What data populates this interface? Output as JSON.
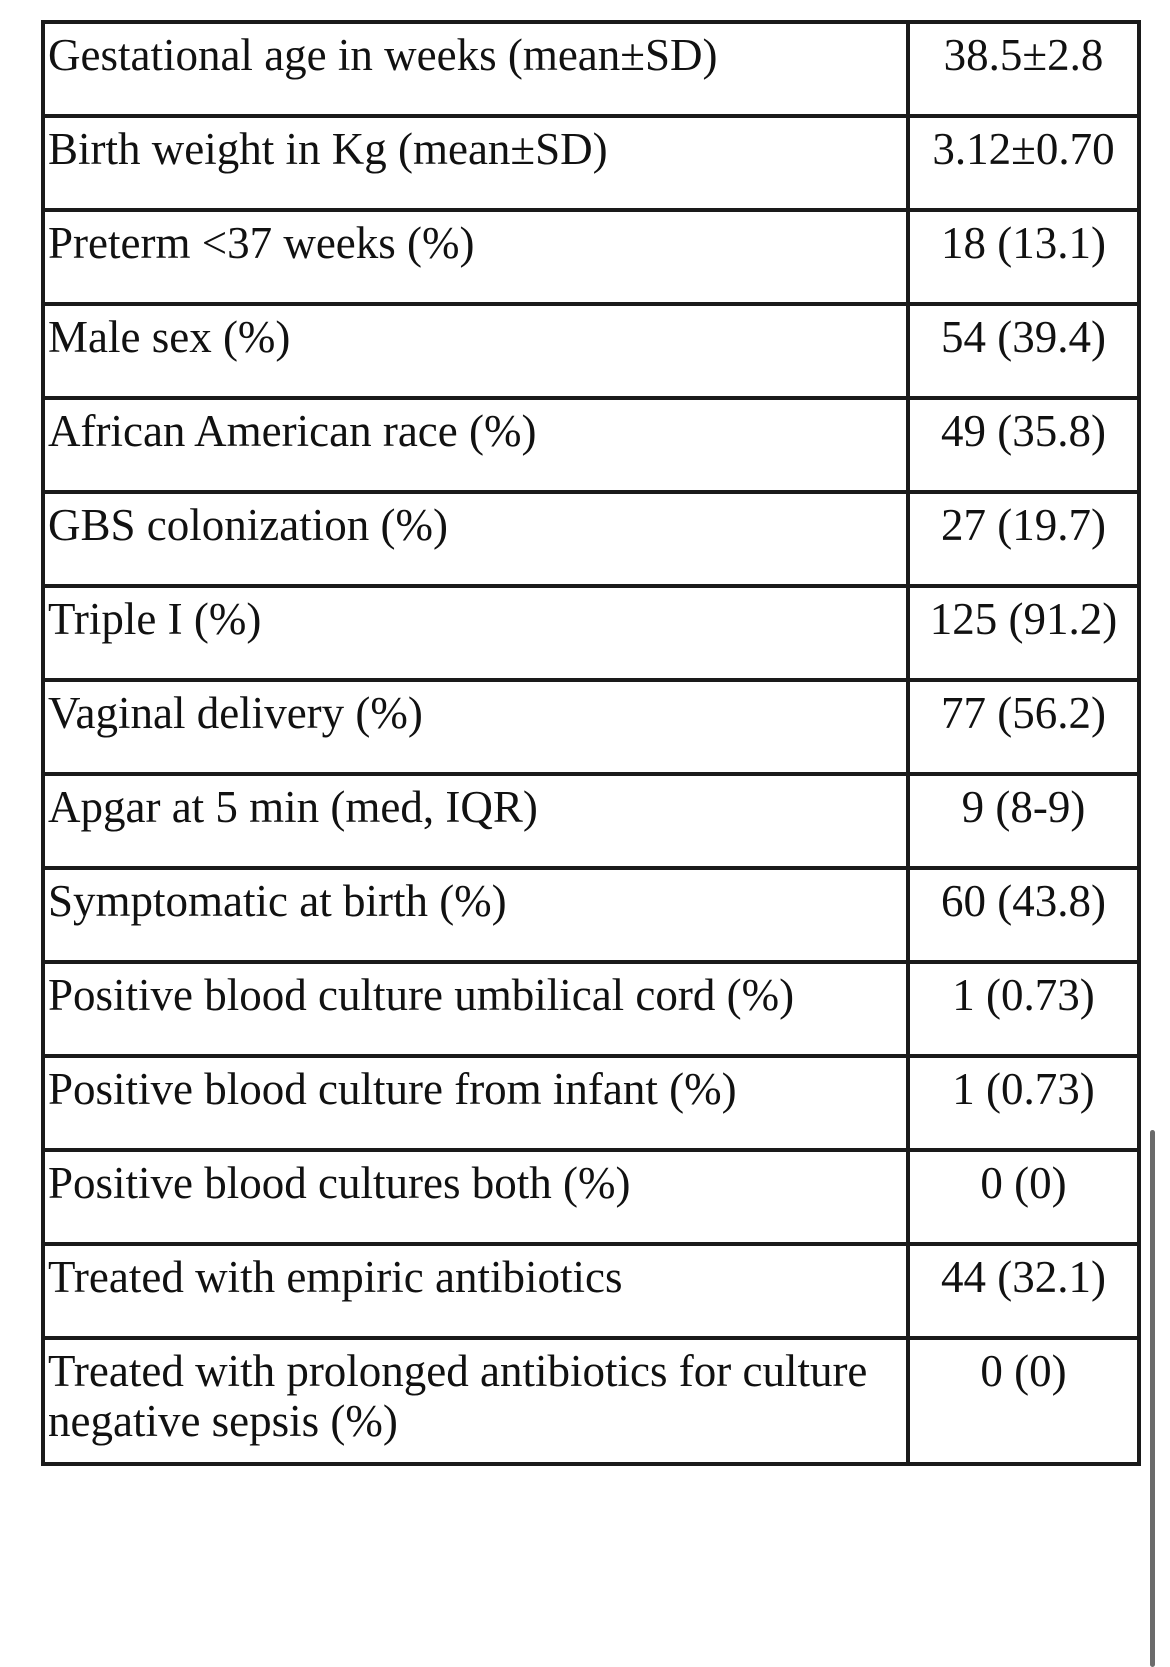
{
  "table": {
    "rows": [
      {
        "label": "Gestational age in weeks (mean±SD)",
        "value": "38.5±2.8"
      },
      {
        "label": "Birth weight in Kg (mean±SD)",
        "value": "3.12±0.70"
      },
      {
        "label": "Preterm <37 weeks (%)",
        "value": "18 (13.1)"
      },
      {
        "label": "Male sex (%)",
        "value": "54 (39.4)"
      },
      {
        "label": "African American race (%)",
        "value": "49 (35.8)"
      },
      {
        "label": "GBS colonization (%)",
        "value": "27 (19.7)"
      },
      {
        "label": "Triple I (%)",
        "value": "125 (91.2)"
      },
      {
        "label": "Vaginal delivery (%)",
        "value": "77 (56.2)"
      },
      {
        "label": "Apgar at 5 min (med, IQR)",
        "value": "9 (8-9)"
      },
      {
        "label": "Symptomatic at birth (%)",
        "value": "60 (43.8)"
      },
      {
        "label": "Positive blood culture umbilical cord (%)",
        "value": "1 (0.73)"
      },
      {
        "label": "Positive blood culture from infant (%)",
        "value": "1 (0.73)"
      },
      {
        "label": "Positive blood cultures both (%)",
        "value": "0 (0)"
      },
      {
        "label": "Treated with empiric antibiotics",
        "value": "44 (32.1)"
      },
      {
        "label": "Treated with prolonged antibiotics for culture negative sepsis (%)",
        "value": "0 (0)"
      }
    ]
  }
}
